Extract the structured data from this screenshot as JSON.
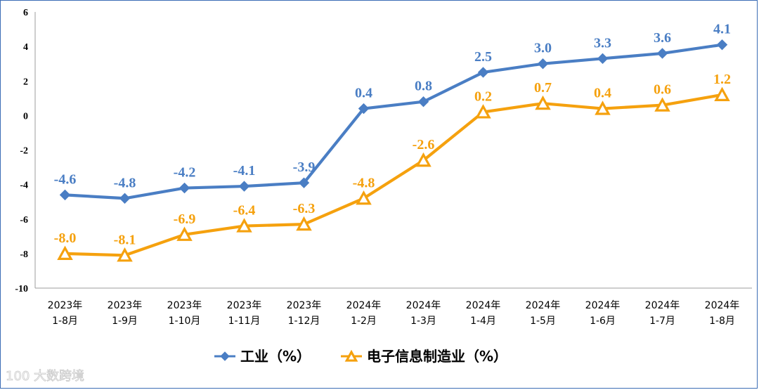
{
  "chart_data": {
    "type": "line",
    "categories": [
      [
        "2023年",
        "1-8月"
      ],
      [
        "2023年",
        "1-9月"
      ],
      [
        "2023年",
        "1-10月"
      ],
      [
        "2023年",
        "1-11月"
      ],
      [
        "2023年",
        "1-12月"
      ],
      [
        "2024年",
        "1-2月"
      ],
      [
        "2024年",
        "1-3月"
      ],
      [
        "2024年",
        "1-4月"
      ],
      [
        "2024年",
        "1-5月"
      ],
      [
        "2024年",
        "1-6月"
      ],
      [
        "2024年",
        "1-7月"
      ],
      [
        "2024年",
        "1-8月"
      ]
    ],
    "series": [
      {
        "name": "工业（%）",
        "color": "#4a7ec4",
        "marker": "diamond",
        "values": [
          -4.6,
          -4.8,
          -4.2,
          -4.1,
          -3.9,
          0.4,
          0.8,
          2.5,
          3.0,
          3.3,
          3.6,
          4.1
        ],
        "labels": [
          "-4.6",
          "-4.8",
          "-4.2",
          "-4.1",
          "-3.9",
          "0.4",
          "0.8",
          "2.5",
          "3.0",
          "3.3",
          "3.6",
          "4.1"
        ]
      },
      {
        "name": "电子信息制造业（%）",
        "color": "#f5a10e",
        "marker": "triangle",
        "values": [
          -8.0,
          -8.1,
          -6.9,
          -6.4,
          -6.3,
          -4.8,
          -2.6,
          0.2,
          0.7,
          0.4,
          0.6,
          1.2
        ],
        "labels": [
          "-8.0",
          "-8.1",
          "-6.9",
          "-6.4",
          "-6.3",
          "-4.8",
          "-2.6",
          "0.2",
          "0.7",
          "0.4",
          "0.6",
          "1.2"
        ]
      }
    ],
    "ylim": [
      -10,
      6
    ],
    "yticks": [
      -10,
      -8,
      -6,
      -4,
      -2,
      0,
      2,
      4,
      6
    ],
    "title": "",
    "xlabel": "",
    "ylabel": "",
    "grid": false,
    "legend": "bottom"
  },
  "watermark": {
    "text": "大数跨境",
    "logo_text": "100"
  }
}
